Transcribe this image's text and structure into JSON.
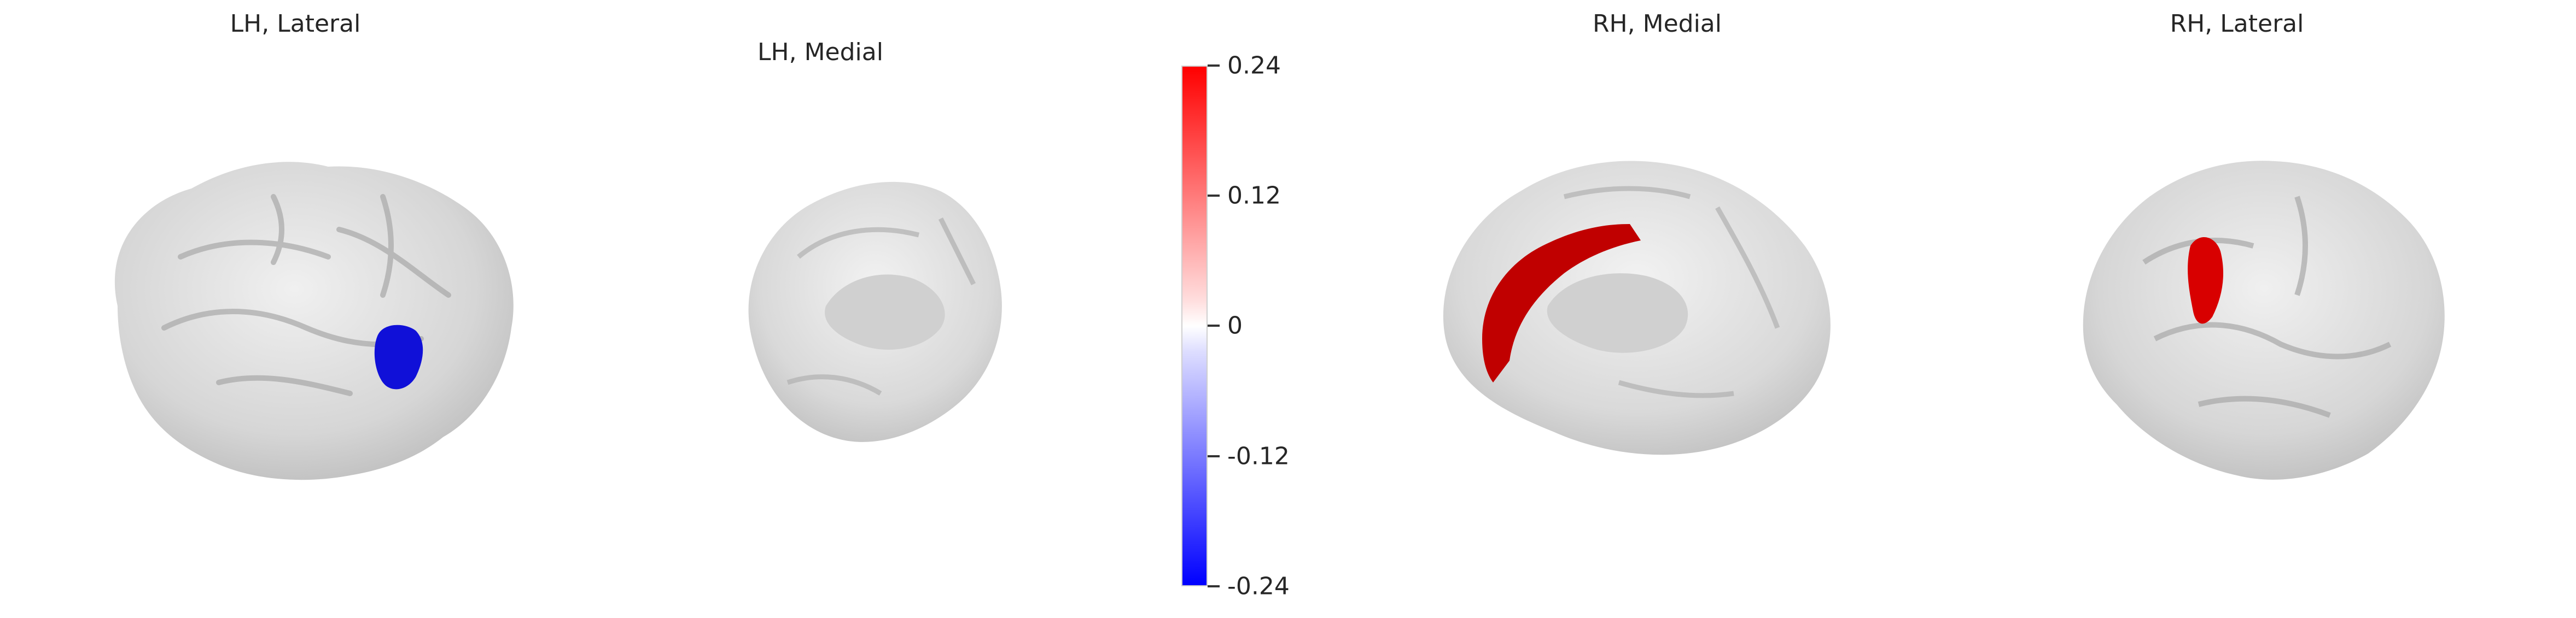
{
  "panels": [
    {
      "title": "LH, Lateral",
      "highlight": "blue"
    },
    {
      "title": "LH, Medial",
      "highlight": "none"
    },
    {
      "title": "RH, Medial",
      "highlight": "red"
    },
    {
      "title": "RH, Lateral",
      "highlight": "red"
    }
  ],
  "colorbar": {
    "ticks": [
      "0.24",
      "0.12",
      "0",
      "-0.12",
      "-0.24"
    ],
    "colors": {
      "max": "#ff0000",
      "mid": "#ffffff",
      "min": "#0000ff"
    }
  }
}
